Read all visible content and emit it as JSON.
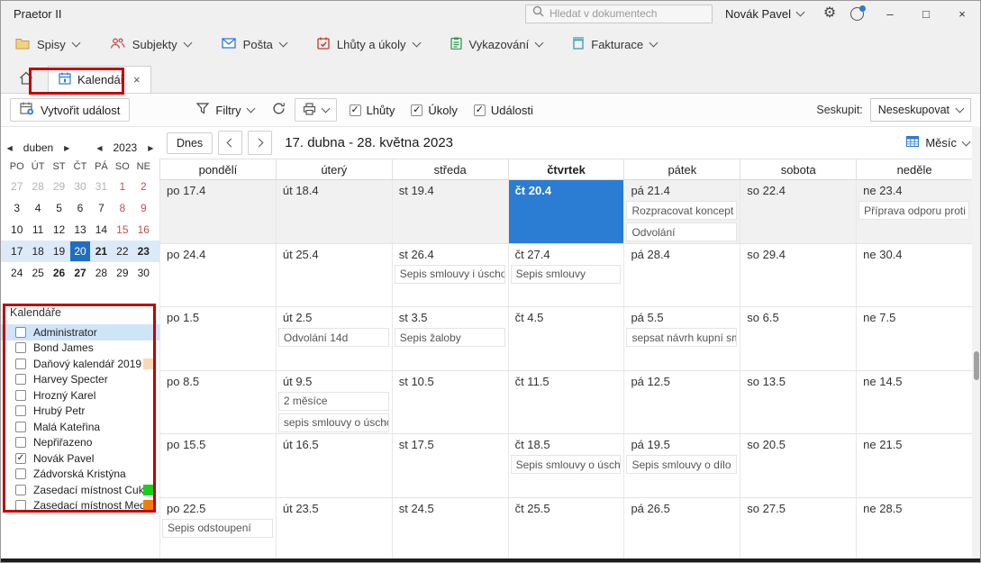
{
  "titlebar": {
    "app_title": "Praetor II",
    "search_placeholder": "Hledat v dokumentech",
    "user_name": "Novák Pavel",
    "minimize": "–",
    "maximize": "□",
    "close": "×"
  },
  "ribbon": {
    "items": [
      {
        "label": "Spisy",
        "icon": "folder-icon"
      },
      {
        "label": "Subjekty",
        "icon": "subjects-icon"
      },
      {
        "label": "Pošta",
        "icon": "mail-icon"
      },
      {
        "label": "Lhůty a úkoly",
        "icon": "deadlines-icon"
      },
      {
        "label": "Vykazování",
        "icon": "reporting-icon"
      },
      {
        "label": "Fakturace",
        "icon": "invoicing-icon"
      }
    ]
  },
  "tabbar": {
    "active_tab": "Kalendář"
  },
  "toolbar": {
    "create_event_label": "Vytvořit událost",
    "filters_label": "Filtry",
    "checkboxes": [
      {
        "label": "Lhůty",
        "checked": true
      },
      {
        "label": "Úkoly",
        "checked": true
      },
      {
        "label": "Události",
        "checked": true
      }
    ],
    "group_label": "Seskupit:",
    "group_value": "Neseskupovat"
  },
  "datenav": {
    "today_label": "Dnes",
    "range_label": "17. dubna - 28. května 2023",
    "view_label": "Měsíc"
  },
  "mini_calendar": {
    "month": "duben",
    "year": "2023",
    "weekday_headers": [
      "PO",
      "ÚT",
      "ST",
      "ČT",
      "PÁ",
      "SO",
      "NE"
    ],
    "weeks": [
      {
        "selected": false,
        "days": [
          {
            "t": "27",
            "muted": true
          },
          {
            "t": "28",
            "muted": true
          },
          {
            "t": "29",
            "muted": true
          },
          {
            "t": "30",
            "muted": true
          },
          {
            "t": "31",
            "muted": true
          },
          {
            "t": "1",
            "weekend": true
          },
          {
            "t": "2",
            "weekend": true
          }
        ]
      },
      {
        "selected": false,
        "days": [
          {
            "t": "3"
          },
          {
            "t": "4"
          },
          {
            "t": "5"
          },
          {
            "t": "6"
          },
          {
            "t": "7"
          },
          {
            "t": "8",
            "weekend": true
          },
          {
            "t": "9",
            "weekend": true
          }
        ]
      },
      {
        "selected": false,
        "days": [
          {
            "t": "10"
          },
          {
            "t": "11"
          },
          {
            "t": "12"
          },
          {
            "t": "13"
          },
          {
            "t": "14"
          },
          {
            "t": "15",
            "weekend": true
          },
          {
            "t": "16",
            "weekend": true
          }
        ]
      },
      {
        "selected": true,
        "days": [
          {
            "t": "17"
          },
          {
            "t": "18"
          },
          {
            "t": "19"
          },
          {
            "t": "20",
            "today": true
          },
          {
            "t": "21",
            "bold": true
          },
          {
            "t": "22"
          },
          {
            "t": "23",
            "bold": true
          }
        ]
      },
      {
        "selected": false,
        "days": [
          {
            "t": "24"
          },
          {
            "t": "25"
          },
          {
            "t": "26",
            "bold": true
          },
          {
            "t": "27",
            "bold": true
          },
          {
            "t": "28"
          },
          {
            "t": "29"
          },
          {
            "t": "30"
          }
        ]
      }
    ]
  },
  "calendars_panel": {
    "title": "Kalendáře",
    "items": [
      {
        "label": "Administrator",
        "checked": false,
        "highlighted": true
      },
      {
        "label": "Bond James",
        "checked": false
      },
      {
        "label": "Daňový kalendář 2019",
        "checked": false,
        "swatch": "#f9d9b5"
      },
      {
        "label": "Harvey Specter",
        "checked": false
      },
      {
        "label": "Hrozný Karel",
        "checked": false
      },
      {
        "label": "Hrubý Petr",
        "checked": false
      },
      {
        "label": "Malá Kateřina",
        "checked": false
      },
      {
        "label": "Nepřiřazeno",
        "checked": false
      },
      {
        "label": "Novák Pavel",
        "checked": true
      },
      {
        "label": "Zádvorská Kristýna",
        "checked": false
      },
      {
        "label": "Zasedací místnost Cukr",
        "checked": false,
        "swatch": "#17d117"
      },
      {
        "label": "Zasedací místnost Med",
        "checked": false,
        "swatch": "#f57c00"
      }
    ]
  },
  "calendar_grid": {
    "day_headers": [
      {
        "label": "pondělí"
      },
      {
        "label": "úterý"
      },
      {
        "label": "středa"
      },
      {
        "label": "čtvrtek",
        "bold": true
      },
      {
        "label": "pátek"
      },
      {
        "label": "sobota"
      },
      {
        "label": "neděle"
      }
    ],
    "weeks": [
      {
        "current": true,
        "days": [
          {
            "label": "po 17.4",
            "events": []
          },
          {
            "label": "út 18.4",
            "events": []
          },
          {
            "label": "st 19.4",
            "events": []
          },
          {
            "label": "čt 20.4",
            "today": true,
            "events": []
          },
          {
            "label": "pá 21.4",
            "events": [
              "Rozpracovat koncept podá",
              "Odvolání"
            ]
          },
          {
            "label": "so 22.4",
            "events": []
          },
          {
            "label": "ne 23.4",
            "events": [
              "Příprava odporu proti pla"
            ]
          }
        ]
      },
      {
        "days": [
          {
            "label": "po 24.4",
            "events": []
          },
          {
            "label": "út 25.4",
            "events": []
          },
          {
            "label": "st 26.4",
            "events": [
              "Sepis smlouvy i úschově"
            ]
          },
          {
            "label": "čt 27.4",
            "events": [
              "Sepis smlouvy"
            ]
          },
          {
            "label": "pá 28.4",
            "events": []
          },
          {
            "label": "so 29.4",
            "events": []
          },
          {
            "label": "ne 30.4",
            "events": []
          }
        ]
      },
      {
        "days": [
          {
            "label": "po 1.5",
            "events": []
          },
          {
            "label": "út 2.5",
            "events": [
              "Odvolání 14d"
            ]
          },
          {
            "label": "st 3.5",
            "events": [
              "Sepis žaloby"
            ]
          },
          {
            "label": "čt 4.5",
            "events": []
          },
          {
            "label": "pá 5.5",
            "events": [
              "sepsat návrh kupní smlouvy"
            ]
          },
          {
            "label": "so 6.5",
            "events": []
          },
          {
            "label": "ne 7.5",
            "events": []
          }
        ]
      },
      {
        "days": [
          {
            "label": "po 8.5",
            "events": []
          },
          {
            "label": "út 9.5",
            "events": [
              "2 měsíce",
              "sepis smlouvy o úschově"
            ]
          },
          {
            "label": "st 10.5",
            "events": []
          },
          {
            "label": "čt 11.5",
            "events": []
          },
          {
            "label": "pá 12.5",
            "events": []
          },
          {
            "label": "so 13.5",
            "events": []
          },
          {
            "label": "ne 14.5",
            "events": []
          }
        ]
      },
      {
        "days": [
          {
            "label": "po 15.5",
            "events": []
          },
          {
            "label": "út 16.5",
            "events": []
          },
          {
            "label": "st 17.5",
            "events": []
          },
          {
            "label": "čt 18.5",
            "events": [
              "Sepis smlouvy o úschově"
            ]
          },
          {
            "label": "pá 19.5",
            "events": [
              "Sepis smlouvy o dílo"
            ]
          },
          {
            "label": "so 20.5",
            "events": []
          },
          {
            "label": "ne 21.5",
            "events": []
          }
        ]
      },
      {
        "days": [
          {
            "label": "po 22.5",
            "events": [
              "Sepis odstoupení"
            ]
          },
          {
            "label": "út 23.5",
            "events": []
          },
          {
            "label": "st 24.5",
            "events": []
          },
          {
            "label": "čt 25.5",
            "events": []
          },
          {
            "label": "pá 26.5",
            "events": []
          },
          {
            "label": "so 27.5",
            "events": []
          },
          {
            "label": "ne 28.5",
            "events": []
          }
        ]
      }
    ]
  },
  "colors": {
    "accent_blue": "#2b7cd3",
    "today_fill": "#2b7cd3",
    "annotation_red": "#c10000",
    "selected_week_bg": "#dce9f8"
  }
}
